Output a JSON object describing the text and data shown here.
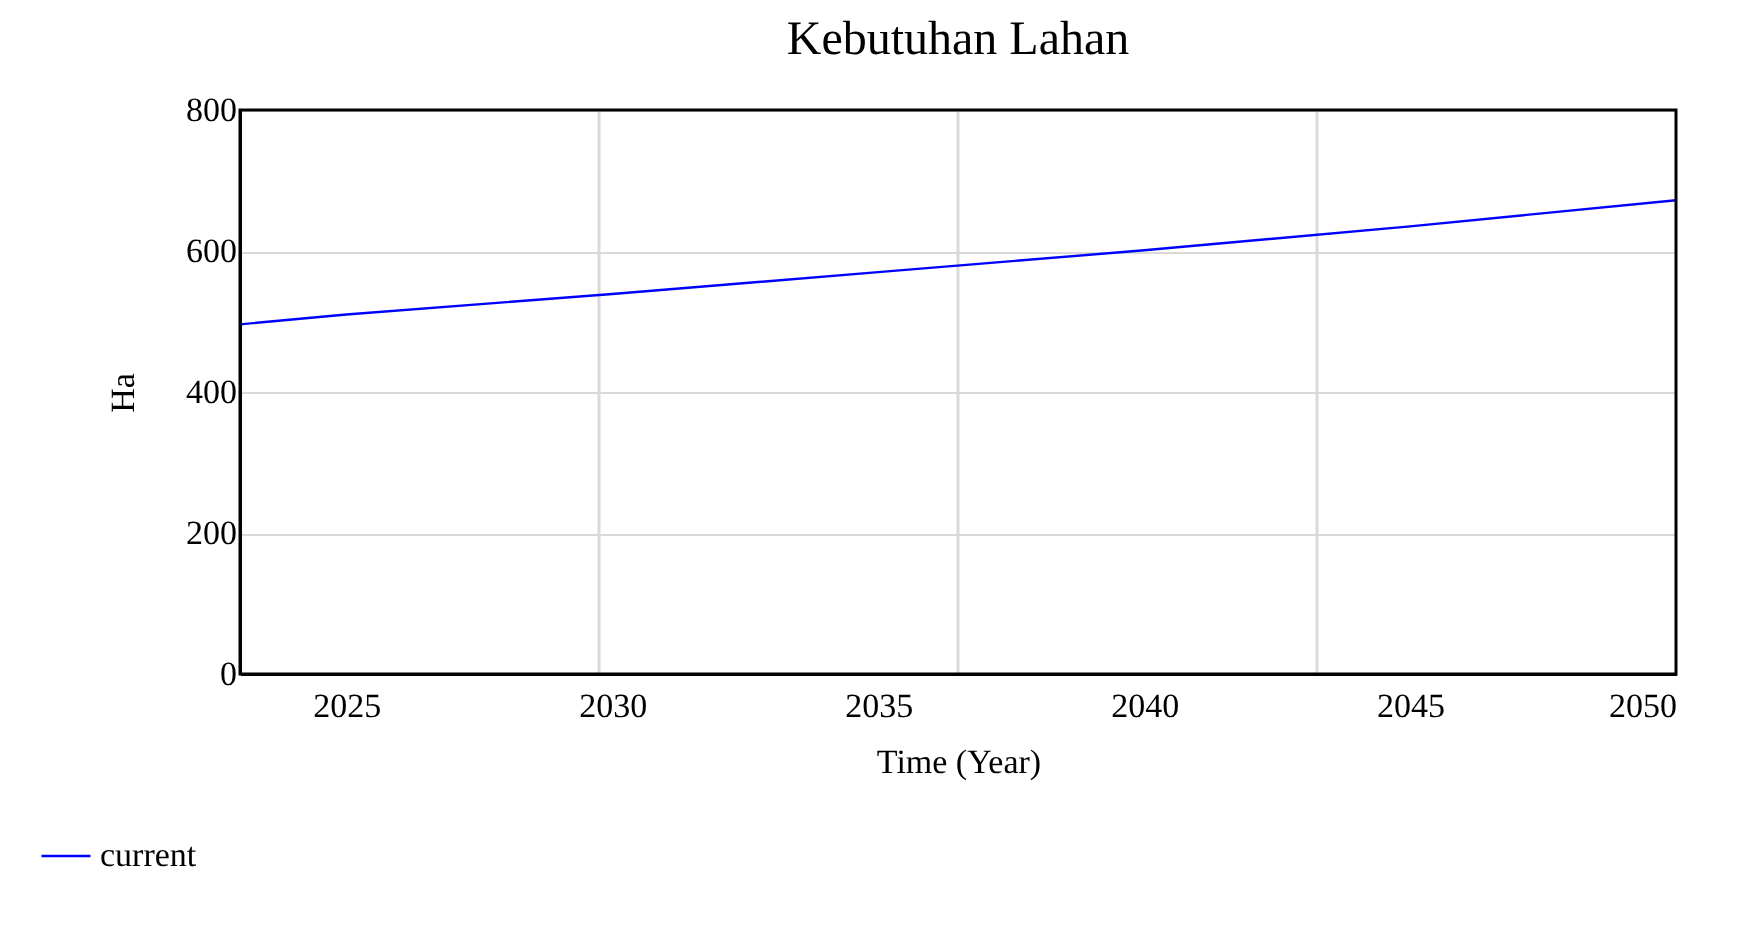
{
  "chart_data": {
    "type": "line",
    "title": "Kebutuhan Lahan",
    "xlabel": "Time (Year)",
    "ylabel": "Ha",
    "x": [
      2023,
      2025,
      2030,
      2035,
      2040,
      2045,
      2050
    ],
    "series": [
      {
        "name": "current",
        "color": "#0000ff",
        "values": [
          496,
          510,
          539,
          570,
          601,
          635,
          672
        ]
      }
    ],
    "xlim": [
      2023,
      2050
    ],
    "ylim": [
      0,
      800
    ],
    "xticks": [
      2025,
      {
        "value": 2029.75,
        "label": null
      },
      2030,
      2035,
      {
        "value": 2036.5,
        "label": null
      },
      2040,
      {
        "value": 2043.25,
        "label": null
      },
      2045,
      2050
    ],
    "yticks": [
      0,
      200,
      400,
      600,
      800
    ],
    "grid": true,
    "legend": "bottom left",
    "marker": "none",
    "line_style": "solid"
  }
}
